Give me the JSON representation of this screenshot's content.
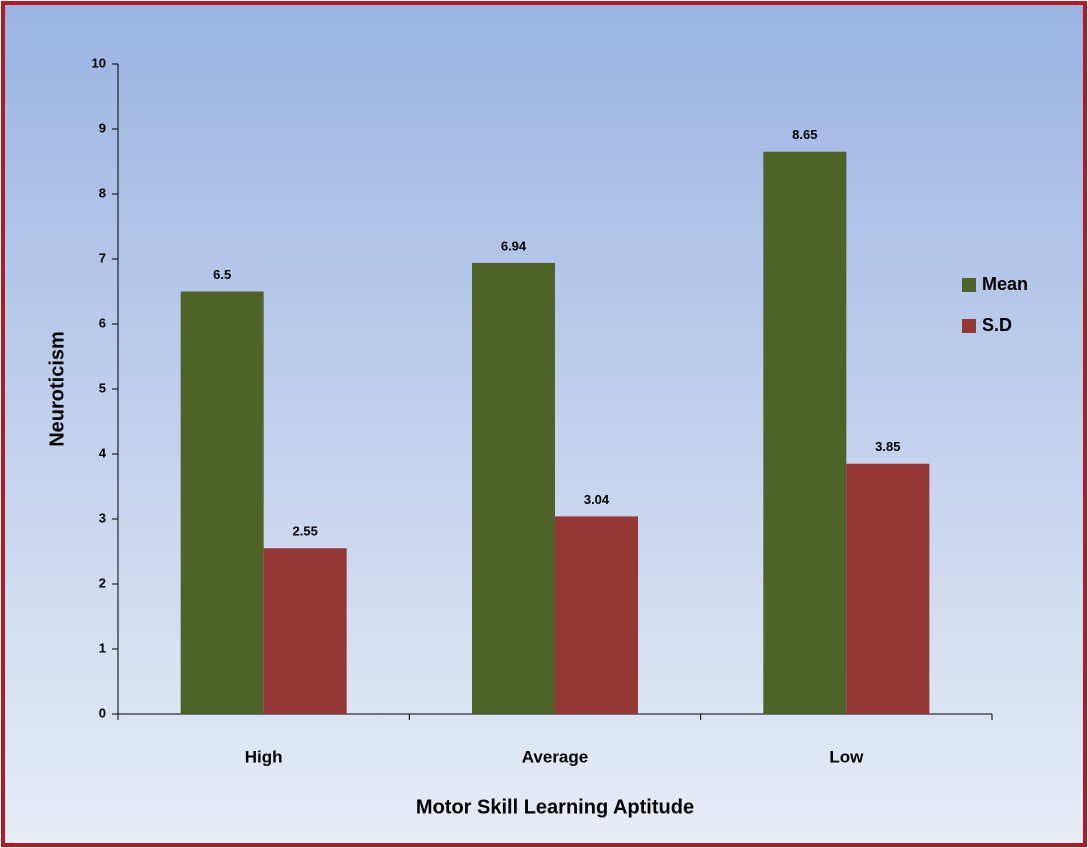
{
  "chart_data": {
    "type": "bar",
    "xlabel": "Motor Skill Learning Aptitude",
    "ylabel": "Neuroticism",
    "categories": [
      "High",
      "Average",
      "Low"
    ],
    "series": [
      {
        "name": "Mean",
        "color": "#4f6228",
        "values": [
          6.5,
          6.94,
          8.65
        ]
      },
      {
        "name": "S.D",
        "color": "#953735",
        "values": [
          2.55,
          3.04,
          3.85
        ]
      }
    ],
    "ylim": [
      0,
      10
    ],
    "yticks": [
      0,
      1,
      2,
      3,
      4,
      5,
      6,
      7,
      8,
      9,
      10
    ],
    "legend": "right"
  }
}
